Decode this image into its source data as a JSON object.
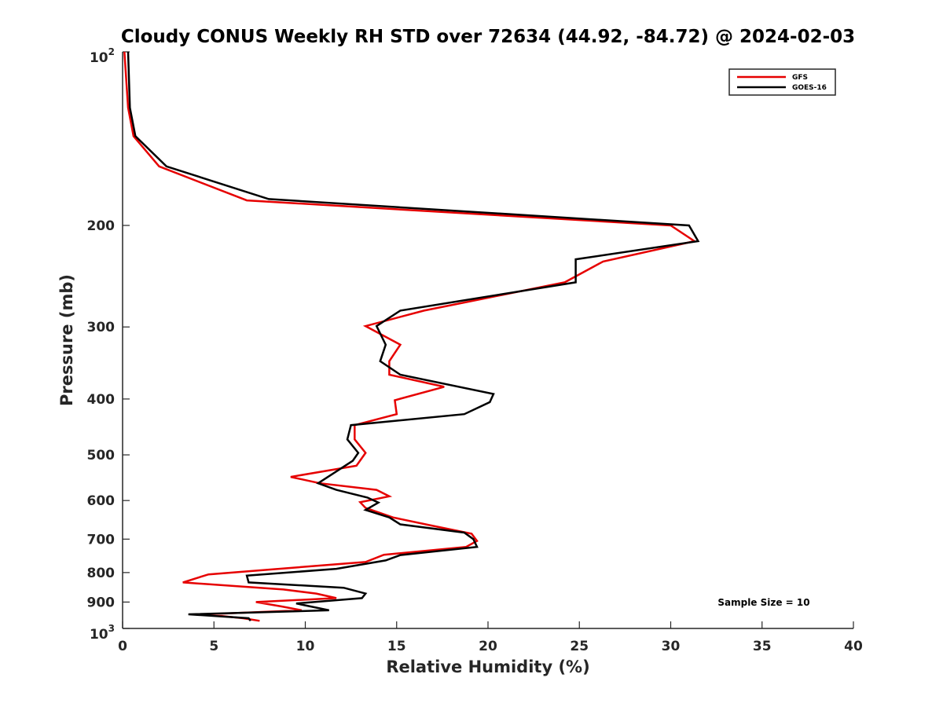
{
  "chart_data": {
    "type": "line",
    "title": "Cloudy CONUS Weekly RH STD over 72634 (44.92, -84.72) @ 2024-02-03",
    "xlabel": "Relative Humidity (%)",
    "ylabel": "Pressure (mb)",
    "xlim": [
      0,
      40
    ],
    "ylim": [
      100,
      1000
    ],
    "y_scale": "log",
    "y_reversed": true,
    "grid": false,
    "legend_position": "top-right",
    "annotation": "Sample Size = 10",
    "x_ticks": [
      "0",
      "5",
      "10",
      "15",
      "20",
      "25",
      "30",
      "35",
      "40"
    ],
    "y_ticks": [
      {
        "value": 100,
        "base": "10",
        "exp": "2"
      },
      {
        "value": 200,
        "base": "200",
        "exp": ""
      },
      {
        "value": 300,
        "base": "300",
        "exp": ""
      },
      {
        "value": 400,
        "base": "400",
        "exp": ""
      },
      {
        "value": 500,
        "base": "500",
        "exp": ""
      },
      {
        "value": 600,
        "base": "600",
        "exp": ""
      },
      {
        "value": 700,
        "base": "700",
        "exp": ""
      },
      {
        "value": 800,
        "base": "800",
        "exp": ""
      },
      {
        "value": 900,
        "base": "900",
        "exp": ""
      },
      {
        "value": 1000,
        "base": "10",
        "exp": "3"
      }
    ],
    "series": [
      {
        "name": "GFS",
        "color": "#e60000",
        "points": [
          [
            0.1,
            100
          ],
          [
            0.3,
            125
          ],
          [
            0.6,
            140
          ],
          [
            2.0,
            158
          ],
          [
            6.8,
            181
          ],
          [
            30.0,
            200
          ],
          [
            31.3,
            213
          ],
          [
            26.3,
            231
          ],
          [
            24.2,
            251
          ],
          [
            16.5,
            281
          ],
          [
            13.3,
            299
          ],
          [
            15.2,
            322
          ],
          [
            14.6,
            344
          ],
          [
            14.6,
            363
          ],
          [
            17.6,
            381
          ],
          [
            14.9,
            402
          ],
          [
            15.0,
            425
          ],
          [
            12.7,
            444
          ],
          [
            12.7,
            470
          ],
          [
            13.3,
            496
          ],
          [
            12.8,
            522
          ],
          [
            9.2,
            546
          ],
          [
            10.8,
            560
          ],
          [
            13.9,
            575
          ],
          [
            14.6,
            590
          ],
          [
            13.0,
            604
          ],
          [
            13.3,
            618
          ],
          [
            14.8,
            642
          ],
          [
            16.8,
            662
          ],
          [
            19.1,
            685
          ],
          [
            19.4,
            705
          ],
          [
            18.8,
            722
          ],
          [
            14.3,
            745
          ],
          [
            13.3,
            767
          ],
          [
            4.7,
            806
          ],
          [
            3.3,
            832
          ],
          [
            8.8,
            856
          ],
          [
            10.6,
            870
          ],
          [
            11.7,
            886
          ],
          [
            7.3,
            900
          ],
          [
            8.7,
            916
          ],
          [
            9.8,
            930
          ],
          [
            4.5,
            945
          ],
          [
            6.6,
            960
          ],
          [
            7.5,
            970
          ]
        ]
      },
      {
        "name": "GOES-16",
        "color": "#000000",
        "points": [
          [
            0.3,
            100
          ],
          [
            0.4,
            125
          ],
          [
            0.7,
            140
          ],
          [
            2.4,
            158
          ],
          [
            8.0,
            180
          ],
          [
            31.0,
            200
          ],
          [
            31.5,
            213
          ],
          [
            24.8,
            229
          ],
          [
            24.8,
            251
          ],
          [
            15.2,
            281
          ],
          [
            13.9,
            299
          ],
          [
            14.4,
            322
          ],
          [
            14.1,
            344
          ],
          [
            15.2,
            363
          ],
          [
            20.3,
            392
          ],
          [
            20.1,
            405
          ],
          [
            18.7,
            425
          ],
          [
            12.5,
            444
          ],
          [
            12.3,
            470
          ],
          [
            12.9,
            496
          ],
          [
            12.6,
            512
          ],
          [
            10.7,
            560
          ],
          [
            11.7,
            575
          ],
          [
            13.4,
            593
          ],
          [
            14.0,
            605
          ],
          [
            13.3,
            623
          ],
          [
            14.6,
            642
          ],
          [
            15.2,
            660
          ],
          [
            18.7,
            682
          ],
          [
            19.2,
            700
          ],
          [
            19.4,
            722
          ],
          [
            15.2,
            746
          ],
          [
            14.4,
            762
          ],
          [
            11.7,
            788
          ],
          [
            6.8,
            810
          ],
          [
            6.9,
            832
          ],
          [
            12.1,
            850
          ],
          [
            13.3,
            870
          ],
          [
            13.1,
            886
          ],
          [
            9.5,
            905
          ],
          [
            11.3,
            930
          ],
          [
            3.6,
            945
          ],
          [
            6.9,
            960
          ],
          [
            7.0,
            970
          ]
        ]
      }
    ]
  }
}
